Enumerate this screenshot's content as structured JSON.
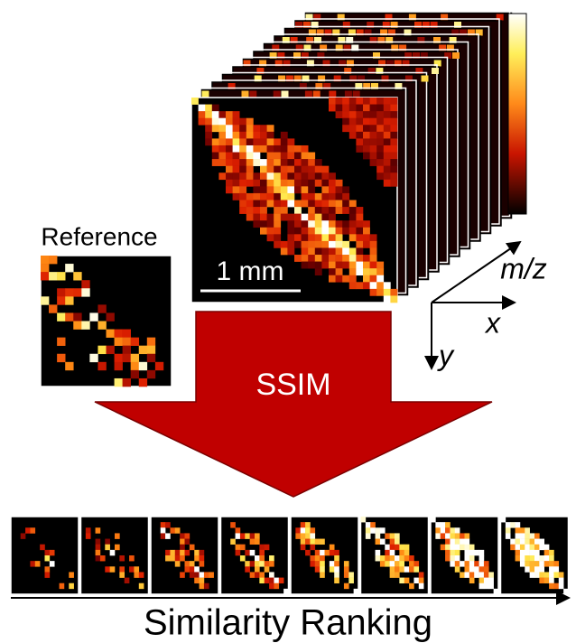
{
  "reference_label": "Reference",
  "scale_bar": "1 mm",
  "axes": {
    "mz": "m/z",
    "x": "x",
    "y": "y"
  },
  "arrow_label": "SSIM",
  "ranking_label": "Similarity Ranking"
}
